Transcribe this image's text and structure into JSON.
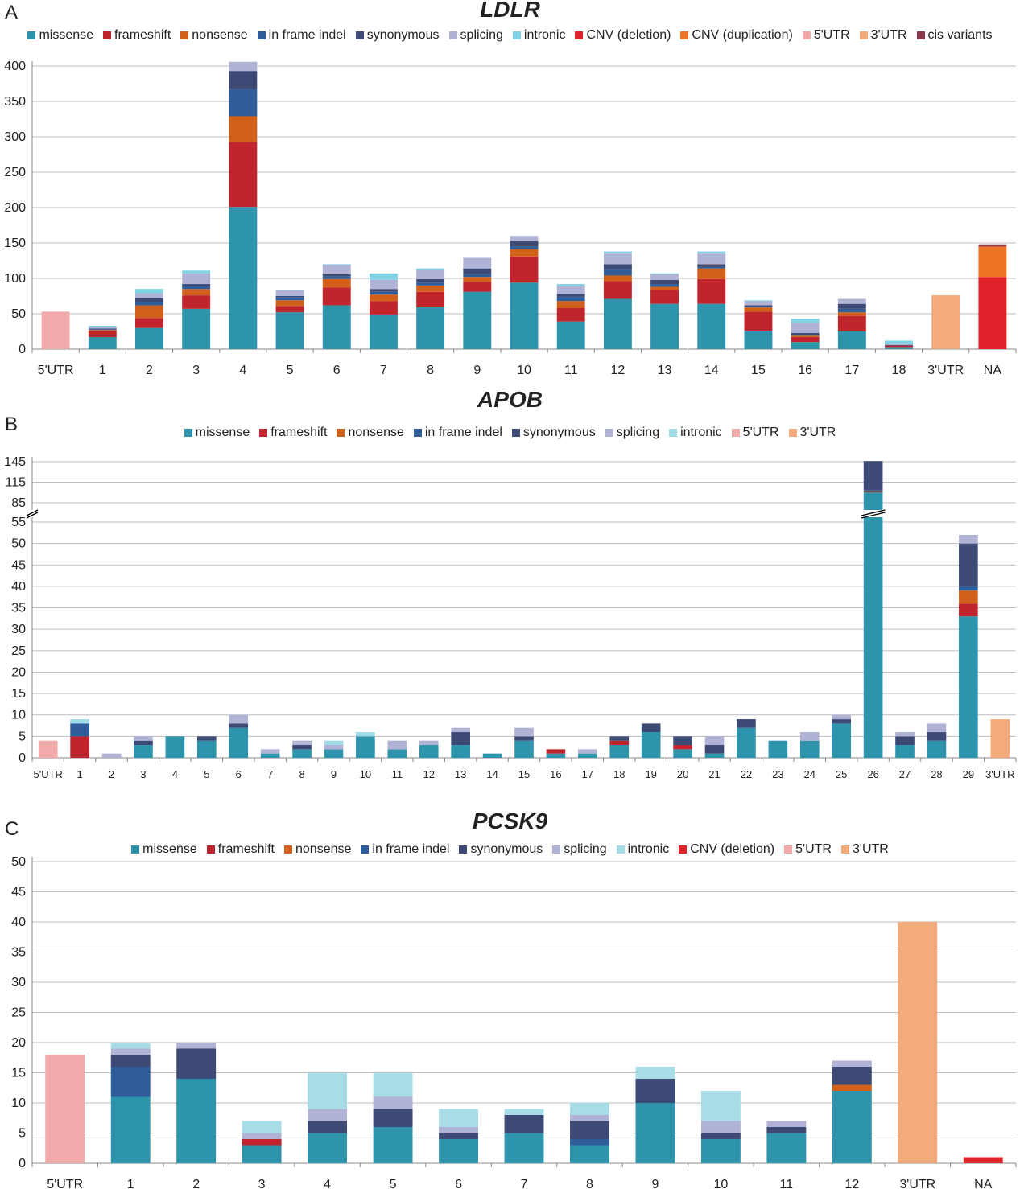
{
  "chart_data": [
    {
      "panel": "A",
      "type": "bar",
      "stacked": true,
      "title": "LDLR",
      "legend_position": "top",
      "grid": true,
      "ylim": [
        0,
        400
      ],
      "yticks": [
        0,
        50,
        100,
        150,
        200,
        250,
        300,
        350,
        400
      ],
      "categories": [
        "5'UTR",
        "1",
        "2",
        "3",
        "4",
        "5",
        "6",
        "7",
        "8",
        "9",
        "10",
        "11",
        "12",
        "13",
        "14",
        "15",
        "16",
        "17",
        "18",
        "3'UTR",
        "NA"
      ],
      "series": [
        {
          "name": "missense",
          "color": "#2e94ab",
          "values": [
            0,
            17,
            30,
            57,
            201,
            52,
            62,
            49,
            59,
            81,
            94,
            39,
            71,
            64,
            64,
            26,
            10,
            25,
            3,
            0,
            0
          ]
        },
        {
          "name": "frameshift",
          "color": "#c0252d",
          "values": [
            0,
            8,
            14,
            19,
            92,
            9,
            25,
            19,
            22,
            14,
            37,
            19,
            25,
            20,
            35,
            27,
            7,
            22,
            2,
            0,
            0
          ]
        },
        {
          "name": "nonsense",
          "color": "#d0601a",
          "values": [
            0,
            2,
            18,
            9,
            36,
            8,
            12,
            9,
            9,
            7,
            10,
            10,
            8,
            4,
            15,
            6,
            2,
            5,
            0,
            0,
            0
          ]
        },
        {
          "name": "in frame indel",
          "color": "#2e5d99",
          "values": [
            0,
            1,
            4,
            3,
            38,
            4,
            4,
            4,
            4,
            4,
            4,
            6,
            8,
            4,
            2,
            1,
            1,
            5,
            0,
            0,
            0
          ]
        },
        {
          "name": "synonymous",
          "color": "#3d4a76",
          "values": [
            0,
            1,
            6,
            4,
            26,
            2,
            3,
            4,
            5,
            8,
            8,
            4,
            8,
            6,
            4,
            2,
            3,
            7,
            1,
            0,
            0
          ]
        },
        {
          "name": "splicing",
          "color": "#b0b3d5",
          "values": [
            0,
            2,
            7,
            15,
            13,
            8,
            13,
            13,
            13,
            15,
            7,
            11,
            15,
            8,
            15,
            6,
            14,
            7,
            2,
            0,
            0
          ]
        },
        {
          "name": "intronic",
          "color": "#7fd3e5",
          "values": [
            0,
            2,
            6,
            4,
            0,
            1,
            1,
            9,
            2,
            0,
            0,
            3,
            3,
            1,
            3,
            1,
            6,
            0,
            4,
            0,
            0
          ]
        },
        {
          "name": "CNV (deletion)",
          "color": "#e0232a",
          "values": [
            0,
            0,
            0,
            0,
            0,
            0,
            0,
            0,
            0,
            0,
            0,
            0,
            0,
            0,
            0,
            0,
            0,
            0,
            0,
            0,
            102
          ]
        },
        {
          "name": "CNV (duplication)",
          "color": "#ed7424",
          "values": [
            0,
            0,
            0,
            0,
            0,
            0,
            0,
            0,
            0,
            0,
            0,
            0,
            0,
            0,
            0,
            0,
            0,
            0,
            0,
            0,
            43
          ]
        },
        {
          "name": "5'UTR",
          "color": "#f1aaaa",
          "values": [
            53,
            0,
            0,
            0,
            0,
            0,
            0,
            0,
            0,
            0,
            0,
            0,
            0,
            0,
            0,
            0,
            0,
            0,
            0,
            0,
            0
          ]
        },
        {
          "name": "3'UTR",
          "color": "#f3aa7c",
          "values": [
            0,
            0,
            0,
            0,
            0,
            0,
            0,
            0,
            0,
            0,
            0,
            0,
            0,
            0,
            0,
            0,
            0,
            0,
            0,
            76,
            0
          ]
        },
        {
          "name": "cis variants",
          "color": "#8a3a4b",
          "values": [
            0,
            0,
            0,
            0,
            0,
            0,
            0,
            0,
            0,
            0,
            0,
            0,
            0,
            0,
            0,
            0,
            0,
            0,
            0,
            0,
            3
          ]
        }
      ]
    },
    {
      "panel": "B",
      "type": "bar",
      "stacked": true,
      "title": "APOB",
      "legend_position": "top",
      "grid": true,
      "ylim": [
        0,
        145
      ],
      "axis_break": [
        55,
        85
      ],
      "yticks": [
        0,
        5,
        10,
        15,
        20,
        25,
        30,
        35,
        40,
        45,
        50,
        55,
        85,
        115,
        145
      ],
      "categories": [
        "5'UTR",
        "1",
        "2",
        "3",
        "4",
        "5",
        "6",
        "7",
        "8",
        "9",
        "10",
        "11",
        "12",
        "13",
        "14",
        "15",
        "16",
        "17",
        "18",
        "19",
        "20",
        "21",
        "22",
        "23",
        "24",
        "25",
        "26",
        "27",
        "28",
        "29",
        "3'UTR"
      ],
      "series": [
        {
          "name": "missense",
          "color": "#2e94ab",
          "values": [
            0,
            0,
            0,
            3,
            5,
            4,
            7,
            1,
            2,
            2,
            5,
            2,
            3,
            3,
            1,
            4,
            1,
            1,
            3,
            6,
            2,
            1,
            7,
            4,
            4,
            8,
            100,
            3,
            4,
            33,
            0
          ]
        },
        {
          "name": "frameshift",
          "color": "#c0252d",
          "values": [
            0,
            5,
            0,
            0,
            0,
            0,
            0,
            0,
            0,
            0,
            0,
            0,
            0,
            0,
            0,
            0,
            1,
            0,
            1,
            0,
            1,
            0,
            0,
            0,
            0,
            0,
            2,
            0,
            0,
            3,
            0
          ]
        },
        {
          "name": "nonsense",
          "color": "#d0601a",
          "values": [
            0,
            0,
            0,
            0,
            0,
            0,
            0,
            0,
            0,
            0,
            0,
            0,
            0,
            0,
            0,
            0,
            0,
            0,
            0,
            0,
            0,
            0,
            0,
            0,
            0,
            0,
            0,
            0,
            0,
            3,
            0
          ]
        },
        {
          "name": "in frame indel",
          "color": "#2e5d99",
          "values": [
            0,
            3,
            0,
            0,
            0,
            0,
            0,
            0,
            0,
            0,
            0,
            0,
            0,
            0,
            0,
            0,
            0,
            0,
            0,
            0,
            0,
            0,
            0,
            0,
            0,
            0,
            1,
            0,
            0,
            1,
            0
          ]
        },
        {
          "name": "synonymous",
          "color": "#3d4a76",
          "values": [
            0,
            0,
            0,
            1,
            0,
            1,
            1,
            0,
            1,
            0,
            0,
            0,
            0,
            3,
            0,
            1,
            0,
            0,
            1,
            2,
            2,
            2,
            2,
            0,
            0,
            1,
            43,
            2,
            2,
            10,
            0
          ]
        },
        {
          "name": "splicing",
          "color": "#b0b3d5",
          "values": [
            0,
            0,
            1,
            1,
            0,
            0,
            2,
            1,
            1,
            1,
            0,
            2,
            1,
            1,
            0,
            2,
            0,
            1,
            0,
            0,
            0,
            2,
            0,
            0,
            2,
            1,
            0,
            1,
            2,
            2,
            0
          ]
        },
        {
          "name": "intronic",
          "color": "#9fdce8",
          "values": [
            0,
            1,
            0,
            0,
            0,
            0,
            0,
            0,
            0,
            1,
            1,
            0,
            0,
            0,
            0,
            0,
            0,
            0,
            0,
            0,
            0,
            0,
            0,
            0,
            0,
            0,
            0,
            0,
            0,
            0,
            0
          ]
        },
        {
          "name": "5'UTR",
          "color": "#f1aaaa",
          "values": [
            4,
            0,
            0,
            0,
            0,
            0,
            0,
            0,
            0,
            0,
            0,
            0,
            0,
            0,
            0,
            0,
            0,
            0,
            0,
            0,
            0,
            0,
            0,
            0,
            0,
            0,
            0,
            0,
            0,
            0,
            0
          ]
        },
        {
          "name": "3'UTR",
          "color": "#f3aa7c",
          "values": [
            0,
            0,
            0,
            0,
            0,
            0,
            0,
            0,
            0,
            0,
            0,
            0,
            0,
            0,
            0,
            0,
            0,
            0,
            0,
            0,
            0,
            0,
            0,
            0,
            0,
            0,
            0,
            0,
            0,
            0,
            9
          ]
        }
      ]
    },
    {
      "panel": "C",
      "type": "bar",
      "stacked": true,
      "title": "PCSK9",
      "legend_position": "top",
      "grid": true,
      "ylim": [
        0,
        50
      ],
      "yticks": [
        0,
        5,
        10,
        15,
        20,
        25,
        30,
        35,
        40,
        45,
        50
      ],
      "categories": [
        "5'UTR",
        "1",
        "2",
        "3",
        "4",
        "5",
        "6",
        "7",
        "8",
        "9",
        "10",
        "11",
        "12",
        "3'UTR",
        "NA"
      ],
      "series": [
        {
          "name": "missense",
          "color": "#2e94ab",
          "values": [
            0,
            11,
            14,
            3,
            5,
            6,
            4,
            5,
            3,
            10,
            4,
            5,
            12,
            0,
            0
          ]
        },
        {
          "name": "frameshift",
          "color": "#c0252d",
          "values": [
            0,
            0,
            0,
            1,
            0,
            0,
            0,
            0,
            0,
            0,
            0,
            0,
            0,
            0,
            0
          ]
        },
        {
          "name": "nonsense",
          "color": "#d0601a",
          "values": [
            0,
            0,
            0,
            0,
            0,
            0,
            0,
            0,
            0,
            0,
            0,
            0,
            1,
            0,
            0
          ]
        },
        {
          "name": "in frame indel",
          "color": "#2e5d99",
          "values": [
            0,
            5,
            0,
            0,
            0,
            0,
            0,
            0,
            1,
            0,
            0,
            0,
            0,
            0,
            0
          ]
        },
        {
          "name": "synonymous",
          "color": "#3d4a76",
          "values": [
            0,
            2,
            5,
            0,
            2,
            3,
            1,
            3,
            3,
            4,
            1,
            1,
            3,
            0,
            0
          ]
        },
        {
          "name": "splicing",
          "color": "#b0b3d5",
          "values": [
            0,
            1,
            1,
            1,
            2,
            2,
            1,
            0,
            1,
            0,
            2,
            1,
            1,
            0,
            0
          ]
        },
        {
          "name": "intronic",
          "color": "#a8dde8",
          "values": [
            0,
            1,
            0,
            2,
            6,
            4,
            3,
            1,
            2,
            2,
            5,
            0,
            0,
            0,
            0
          ]
        },
        {
          "name": "CNV (deletion)",
          "color": "#e0232a",
          "values": [
            0,
            0,
            0,
            0,
            0,
            0,
            0,
            0,
            0,
            0,
            0,
            0,
            0,
            0,
            1
          ]
        },
        {
          "name": "5'UTR",
          "color": "#f1aaaa",
          "values": [
            18,
            0,
            0,
            0,
            0,
            0,
            0,
            0,
            0,
            0,
            0,
            0,
            0,
            0,
            0
          ]
        },
        {
          "name": "3'UTR",
          "color": "#f3aa7c",
          "values": [
            0,
            0,
            0,
            0,
            0,
            0,
            0,
            0,
            0,
            0,
            0,
            0,
            0,
            40,
            0
          ]
        }
      ]
    }
  ]
}
